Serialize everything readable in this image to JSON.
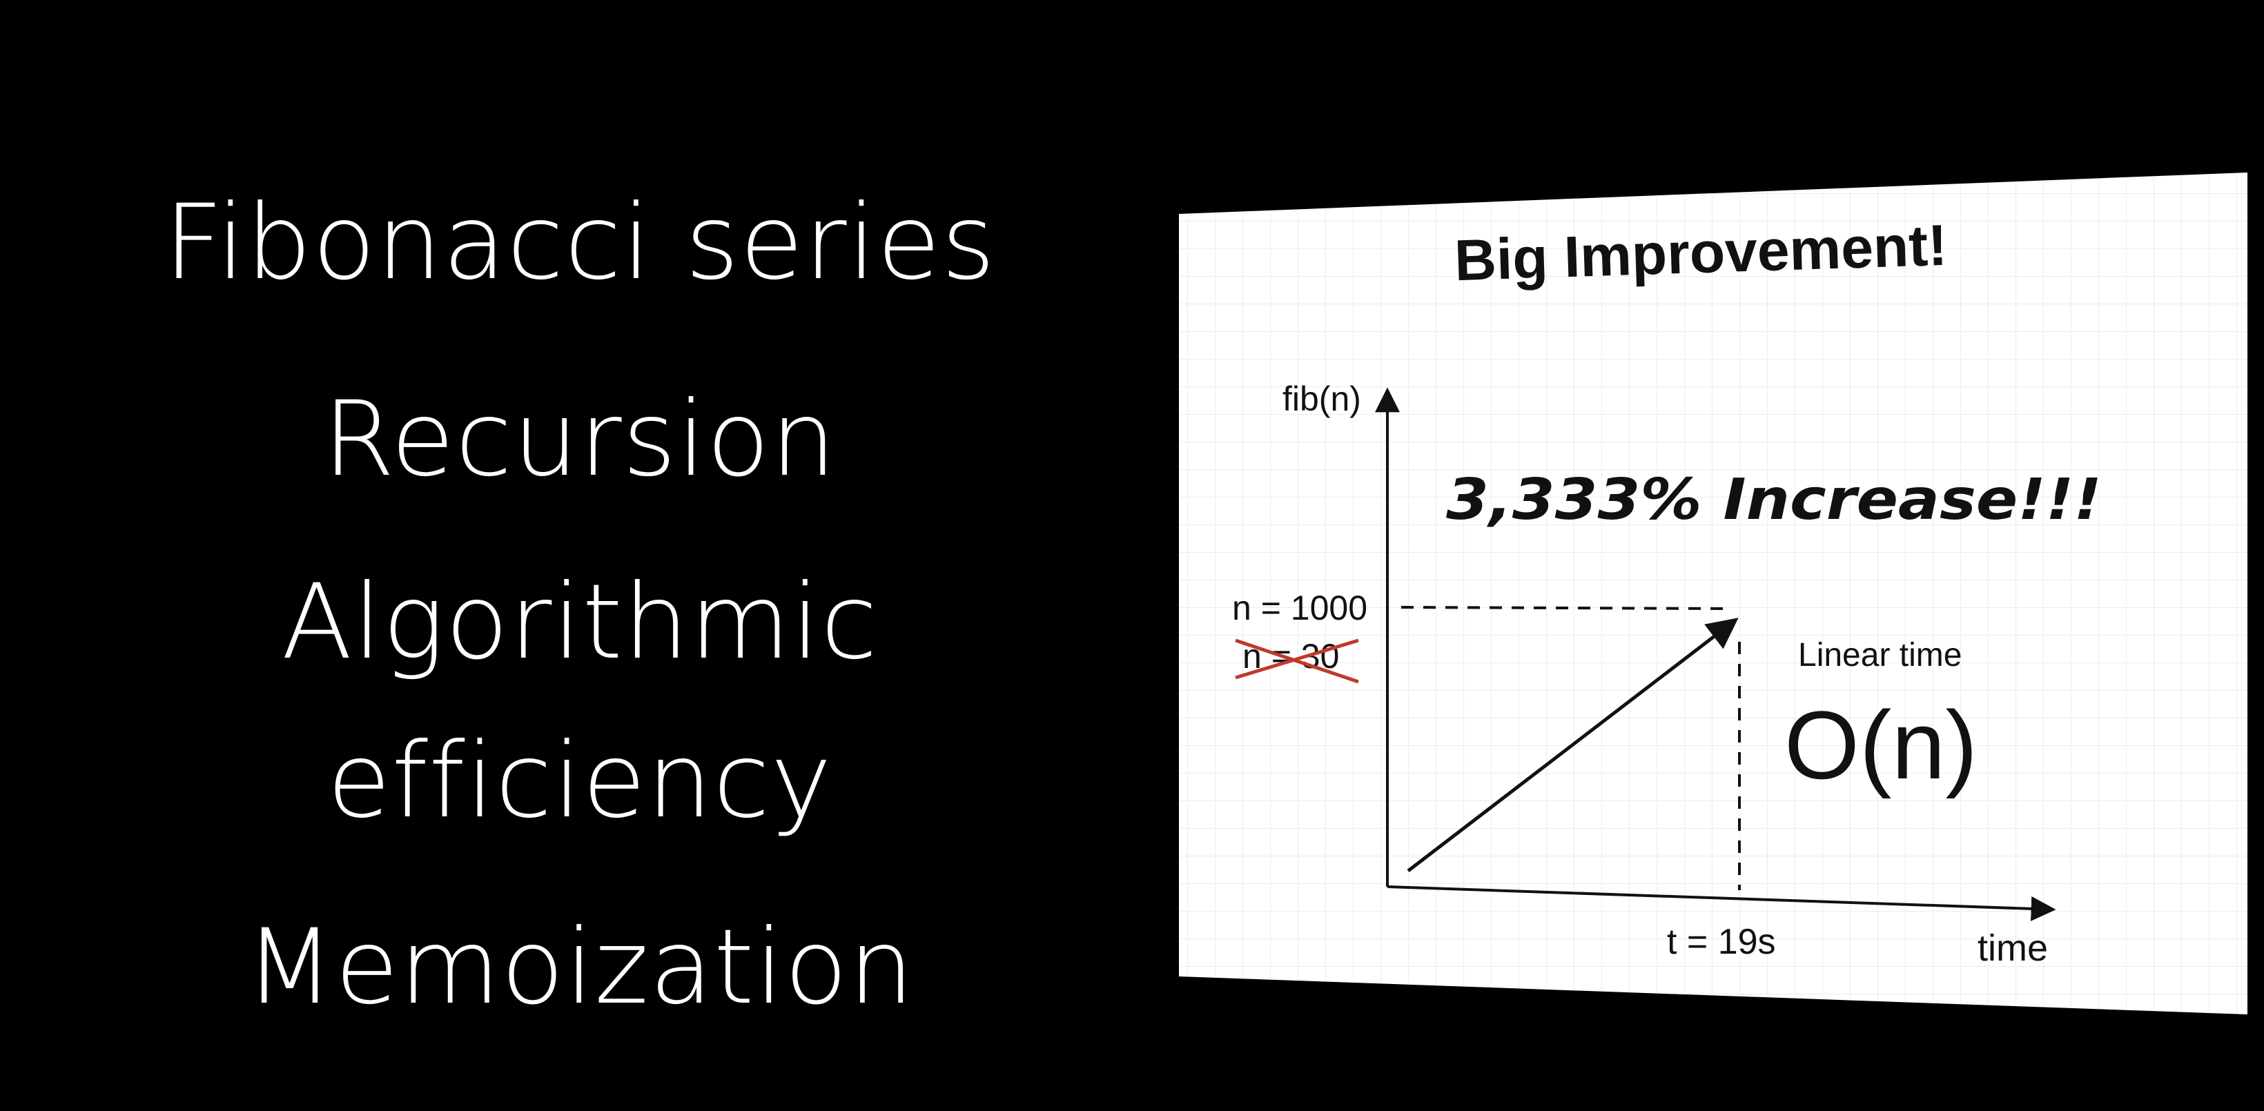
{
  "topics": [
    "Fibonacci series",
    "Recursion",
    "Algorithmic",
    "efficiency",
    "Memoization"
  ],
  "slide": {
    "title": "Big Improvement!",
    "y_axis_label": "fib(n)",
    "x_axis_label": "time",
    "y_marker_label": "n = 1000",
    "y_marker_struck_label": "n = 30",
    "x_marker_label": "t = 19s",
    "annotation_big": "3,333% Increase!!!",
    "complexity_label": "Linear time",
    "complexity_notation": "O(n)",
    "strike_color": "#c0392b"
  }
}
